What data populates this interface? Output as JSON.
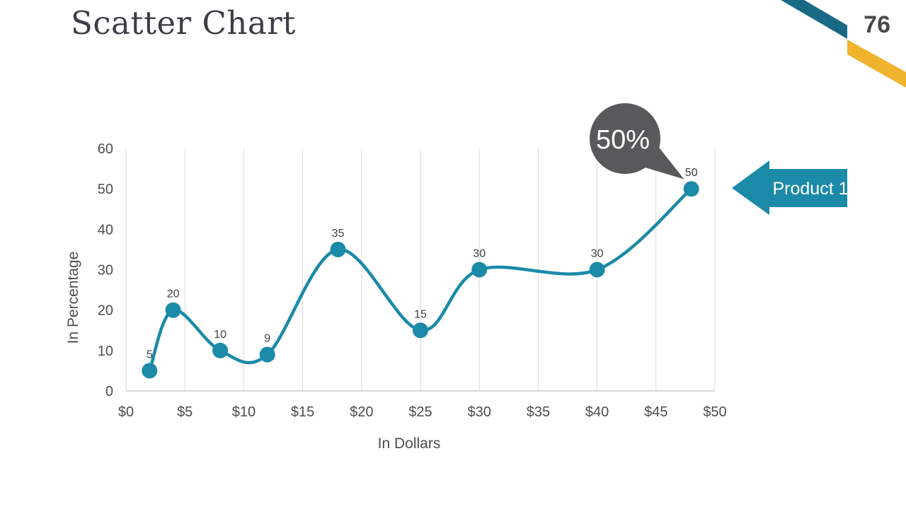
{
  "slide": {
    "title": "Scatter Chart",
    "page_number": "76"
  },
  "callout": {
    "text": "50%"
  },
  "arrow_label": {
    "text": "Product 1"
  },
  "colors": {
    "accent_teal": "#1B89A8",
    "ribbon_teal": "#186A84",
    "ribbon_yellow": "#F0B32E",
    "callout_gray": "#58595B",
    "gridline": "#D9D9D9",
    "axis_line": "#BFBFBF",
    "tick_text": "#4D4D4D",
    "label_text": "#3F3F3F",
    "title_text": "#3D3E45"
  },
  "chart_data": {
    "type": "scatter",
    "title": "",
    "xlabel": "In Dollars",
    "ylabel": "In Percentage",
    "series": [
      {
        "name": "Product 1",
        "x": [
          2,
          4,
          8,
          12,
          18,
          25,
          30,
          40,
          48
        ],
        "y": [
          5,
          20,
          10,
          9,
          35,
          15,
          30,
          30,
          50
        ],
        "point_labels": [
          "5",
          "20",
          "10",
          "9",
          "35",
          "15",
          "30",
          "30",
          "50"
        ]
      }
    ],
    "x_ticks": [
      "$0",
      "$5",
      "$10",
      "$15",
      "$20",
      "$25",
      "$30",
      "$35",
      "$40",
      "$45",
      "$50"
    ],
    "x_tick_values": [
      0,
      5,
      10,
      15,
      20,
      25,
      30,
      35,
      40,
      45,
      50
    ],
    "y_ticks": [
      "0",
      "10",
      "20",
      "30",
      "40",
      "50",
      "60"
    ],
    "y_tick_values": [
      0,
      10,
      20,
      30,
      40,
      50,
      60
    ],
    "xlim": [
      0,
      50
    ],
    "ylim": [
      0,
      60
    ],
    "grid": "vertical-only",
    "legend": "none",
    "smooth_line": true,
    "annotation": "50% callout on last point"
  }
}
